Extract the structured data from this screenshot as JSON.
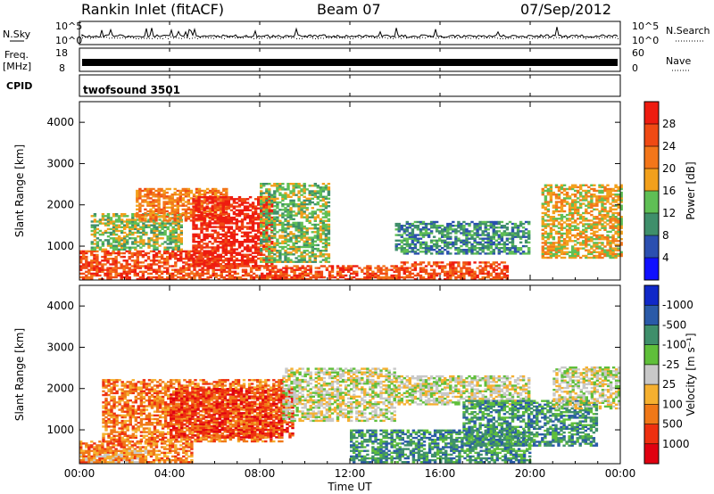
{
  "header": {
    "station": "Rankin Inlet (fitACF)",
    "beam": "Beam 07",
    "date": "07/Sep/2012"
  },
  "strip_panels": {
    "nsky": {
      "left_label": "N.Sky",
      "right_label": "N.Search",
      "left_ticks": [
        "10^5",
        "10^0"
      ],
      "right_ticks": [
        "10^5",
        "10^0"
      ]
    },
    "freq": {
      "left_label_line1": "Freq.",
      "left_label_line2": "[MHz]",
      "right_label": "Nave",
      "left_ticks": [
        "18",
        "8"
      ],
      "right_ticks": [
        "60",
        "0"
      ]
    },
    "cpid": {
      "left_label": "CPID",
      "program": "twofsound 3501"
    }
  },
  "chart_data": [
    {
      "type": "heatmap",
      "title": "",
      "xlabel": "",
      "ylabel": "Slant Range [km]",
      "x_range_hours": [
        0,
        24
      ],
      "ylim": [
        180,
        4500
      ],
      "yticks": [
        1000,
        2000,
        3000,
        4000
      ],
      "colorbar": {
        "label": "Power [dB]",
        "ticks": [
          "4",
          "8",
          "12",
          "16",
          "20",
          "24",
          "28"
        ],
        "colors": [
          "#1010ff",
          "#2b4fb0",
          "#3f8f6b",
          "#5fbf55",
          "#f2a01c",
          "#f3761a",
          "#f04a14",
          "#ee1c10"
        ]
      },
      "features": [
        {
          "t0": 0.0,
          "t1": 6.0,
          "r0": 180,
          "r1": 900,
          "level": 6
        },
        {
          "t0": 0.5,
          "t1": 4.5,
          "r0": 900,
          "r1": 1800,
          "level": 3
        },
        {
          "t0": 2.5,
          "t1": 6.5,
          "r0": 1600,
          "r1": 2400,
          "level": 5
        },
        {
          "t0": 5.0,
          "t1": 8.5,
          "r0": 500,
          "r1": 2200,
          "level": 7
        },
        {
          "t0": 8.0,
          "t1": 11.0,
          "r0": 600,
          "r1": 2500,
          "level": 3
        },
        {
          "t0": 6.0,
          "t1": 14.0,
          "r0": 180,
          "r1": 500,
          "level": 6
        },
        {
          "t0": 14.0,
          "t1": 19.0,
          "r0": 180,
          "r1": 600,
          "level": 6
        },
        {
          "t0": 14.0,
          "t1": 20.0,
          "r0": 800,
          "r1": 1600,
          "level": 2
        },
        {
          "t0": 20.5,
          "t1": 24.0,
          "r0": 700,
          "r1": 2500,
          "level": 4
        }
      ]
    },
    {
      "type": "heatmap",
      "title": "",
      "xlabel": "Time UT",
      "ylabel": "Slant Range [km]",
      "x_range_hours": [
        0,
        24
      ],
      "xticks": [
        "00:00",
        "04:00",
        "08:00",
        "12:00",
        "16:00",
        "20:00",
        "00:00"
      ],
      "ylim": [
        180,
        4500
      ],
      "yticks": [
        1000,
        2000,
        3000,
        4000
      ],
      "colorbar": {
        "label": "Velocity [m s⁻¹]",
        "ticks": [
          "1000",
          "500",
          "100",
          "25",
          "-25",
          "-100",
          "-500",
          "-1000"
        ],
        "colors": [
          "#1028c8",
          "#2a5aa8",
          "#3f8f6b",
          "#5fbf3a",
          "#c8c8c8",
          "#f5b030",
          "#f07818",
          "#ee3010",
          "#e00010"
        ]
      },
      "features": [
        {
          "t0": 0.0,
          "t1": 5.0,
          "r0": 200,
          "r1": 700,
          "level": 2
        },
        {
          "t0": 1.0,
          "t1": 9.0,
          "r0": 700,
          "r1": 2200,
          "level": 2
        },
        {
          "t0": 4.0,
          "t1": 9.5,
          "r0": 800,
          "r1": 2000,
          "level": 1
        },
        {
          "t0": 9.0,
          "t1": 14.0,
          "r0": 1200,
          "r1": 2500,
          "level": 4
        },
        {
          "t0": 14.0,
          "t1": 20.0,
          "r0": 1600,
          "r1": 2300,
          "level": 4
        },
        {
          "t0": 12.0,
          "t1": 20.0,
          "r0": 200,
          "r1": 1000,
          "level": 6
        },
        {
          "t0": 17.0,
          "t1": 23.0,
          "r0": 600,
          "r1": 1700,
          "level": 6
        },
        {
          "t0": 21.0,
          "t1": 24.0,
          "r0": 1500,
          "r1": 2500,
          "level": 4
        },
        {
          "t0": 0.0,
          "t1": 3.0,
          "r0": 200,
          "r1": 500,
          "level": 3
        }
      ]
    }
  ]
}
